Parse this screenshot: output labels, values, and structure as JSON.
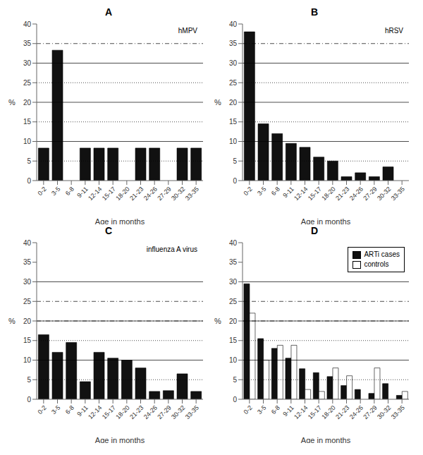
{
  "chart_data": [
    {
      "type": "bar",
      "title": "A",
      "annotations": [
        "hMPV"
      ],
      "xlabel": "Age in months",
      "ylabel": "%",
      "categories": [
        "0-2",
        "3-5",
        "6-8",
        "9-11",
        "12-14",
        "15-17",
        "18-20",
        "21-23",
        "24-26",
        "27-29",
        "30-32",
        "33-35"
      ],
      "values": [
        8.3,
        33.3,
        0,
        8.3,
        8.3,
        8.3,
        0,
        8.3,
        8.3,
        0,
        8.3,
        8.3
      ],
      "color": "#111111",
      "ylim": [
        0,
        40
      ],
      "yticks": [
        0,
        5,
        10,
        15,
        20,
        25,
        30,
        35,
        40
      ],
      "reference_lines": [
        {
          "y": 10,
          "line_style": "solid"
        },
        {
          "y": 20,
          "line_style": "solid"
        },
        {
          "y": 30,
          "line_style": "solid"
        },
        {
          "y": 35,
          "line_style": "dashdot"
        },
        {
          "y": 5,
          "line_style": "dotted"
        },
        {
          "y": 15,
          "line_style": "dotted"
        },
        {
          "y": 25,
          "line_style": "dotted"
        }
      ]
    },
    {
      "type": "bar",
      "title": "B",
      "annotations": [
        "hRSV"
      ],
      "xlabel": "Age in months",
      "ylabel": "%",
      "categories": [
        "0-2",
        "3-5",
        "6-8",
        "9-11",
        "12-14",
        "15-17",
        "18-20",
        "21-23",
        "24-26",
        "27-29",
        "30-32",
        "33-35"
      ],
      "values": [
        38.0,
        14.5,
        12.0,
        9.5,
        8.5,
        6.0,
        5.0,
        1.0,
        2.0,
        1.0,
        3.5,
        0
      ],
      "color": "#111111",
      "ylim": [
        0,
        40
      ],
      "yticks": [
        0,
        5,
        10,
        15,
        20,
        25,
        30,
        35,
        40
      ],
      "reference_lines": [
        {
          "y": 10,
          "line_style": "solid"
        },
        {
          "y": 20,
          "line_style": "solid"
        },
        {
          "y": 30,
          "line_style": "solid"
        },
        {
          "y": 35,
          "line_style": "dashdot"
        },
        {
          "y": 5,
          "line_style": "dotted"
        },
        {
          "y": 15,
          "line_style": "dotted"
        },
        {
          "y": 25,
          "line_style": "dotted"
        }
      ]
    },
    {
      "type": "bar",
      "title": "C",
      "annotations": [
        "influenza A virus"
      ],
      "xlabel": "Age in months",
      "ylabel": "%",
      "categories": [
        "0-2",
        "3-5",
        "6-8",
        "9-11",
        "12-14",
        "15-17",
        "18-20",
        "21-23",
        "24-26",
        "27-29",
        "30-32",
        "33-35"
      ],
      "values": [
        16.5,
        12.0,
        14.5,
        4.5,
        12.0,
        10.5,
        10.0,
        8.0,
        2.0,
        2.2,
        6.5,
        2.0
      ],
      "color": "#111111",
      "ylim": [
        0,
        40
      ],
      "yticks": [
        0,
        5,
        10,
        15,
        20,
        25,
        30,
        35,
        40
      ],
      "reference_lines": [
        {
          "y": 10,
          "line_style": "solid"
        },
        {
          "y": 20,
          "line_style": "solid"
        },
        {
          "y": 30,
          "line_style": "solid"
        },
        {
          "y": 20,
          "line_style": "dashdot"
        },
        {
          "y": 25,
          "line_style": "dashdot"
        },
        {
          "y": 5,
          "line_style": "dotted"
        },
        {
          "y": 15,
          "line_style": "dotted"
        }
      ]
    },
    {
      "type": "bar",
      "title": "D",
      "xlabel": "Age in months",
      "ylabel": "%",
      "categories": [
        "0-2",
        "3-5",
        "6-8",
        "9-11",
        "12-14",
        "15-17",
        "18-20",
        "21-23",
        "24-26",
        "27-29",
        "30-32",
        "33-35"
      ],
      "series": [
        {
          "name": "ARTi cases",
          "color": "#111111",
          "values": [
            29.5,
            15.5,
            13.0,
            10.5,
            7.8,
            6.8,
            5.8,
            3.5,
            2.5,
            1.5,
            4.0,
            1.0
          ]
        },
        {
          "name": "controls",
          "color": "#ffffff",
          "values": [
            22.0,
            10.0,
            13.8,
            13.8,
            2.5,
            2.0,
            8.0,
            6.0,
            0.0,
            8.0,
            0.0,
            2.0
          ]
        }
      ],
      "legend": "upper right",
      "ylim": [
        0,
        40
      ],
      "yticks": [
        0,
        5,
        10,
        15,
        20,
        25,
        30,
        35,
        40
      ],
      "reference_lines": [
        {
          "y": 10,
          "line_style": "solid"
        },
        {
          "y": 20,
          "line_style": "solid"
        },
        {
          "y": 30,
          "line_style": "solid"
        },
        {
          "y": 20,
          "line_style": "dashdot"
        },
        {
          "y": 25,
          "line_style": "dashdot"
        },
        {
          "y": 5,
          "line_style": "dotted"
        },
        {
          "y": 15,
          "line_style": "dotted"
        }
      ]
    }
  ]
}
